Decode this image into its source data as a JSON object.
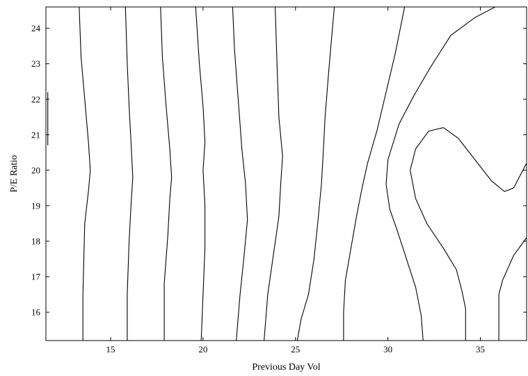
{
  "chart_data": {
    "type": "contour",
    "title": "",
    "xlabel": "Previous Day Vol",
    "ylabel": "P/E Ratio",
    "xlim": [
      11.5,
      37.5
    ],
    "ylim": [
      15.2,
      24.6
    ],
    "xticks": [
      15,
      20,
      25,
      30,
      35
    ],
    "yticks": [
      16,
      17,
      18,
      19,
      20,
      21,
      22,
      23,
      24
    ],
    "grid": false,
    "legend": "none",
    "line_color": "#000000",
    "contours": [
      {
        "points": [
          [
            11.6,
            22.2
          ],
          [
            11.6,
            20.7
          ]
        ]
      },
      {
        "points": [
          [
            13.5,
            15.2
          ],
          [
            13.5,
            16.5
          ],
          [
            13.6,
            18.5
          ],
          [
            13.8,
            19.4
          ],
          [
            13.9,
            20.0
          ],
          [
            13.8,
            20.8
          ],
          [
            13.6,
            22.0
          ],
          [
            13.4,
            23.2
          ],
          [
            13.3,
            24.6
          ]
        ]
      },
      {
        "points": [
          [
            15.9,
            15.2
          ],
          [
            15.9,
            16.5
          ],
          [
            16.0,
            18.0
          ],
          [
            16.1,
            19.0
          ],
          [
            16.2,
            19.8
          ],
          [
            16.1,
            20.8
          ],
          [
            16.0,
            21.8
          ],
          [
            15.9,
            23.0
          ],
          [
            15.8,
            24.6
          ]
        ]
      },
      {
        "points": [
          [
            17.9,
            15.2
          ],
          [
            17.9,
            16.8
          ],
          [
            18.1,
            18.2
          ],
          [
            18.2,
            19.2
          ],
          [
            18.3,
            19.8
          ],
          [
            18.2,
            20.6
          ],
          [
            18.0,
            21.8
          ],
          [
            17.8,
            23.2
          ],
          [
            17.7,
            24.6
          ]
        ]
      },
      {
        "points": [
          [
            19.9,
            15.2
          ],
          [
            20.0,
            16.5
          ],
          [
            20.1,
            17.8
          ],
          [
            20.1,
            19.0
          ],
          [
            20.0,
            20.0
          ],
          [
            20.1,
            20.8
          ],
          [
            20.0,
            21.8
          ],
          [
            19.8,
            23.0
          ],
          [
            19.6,
            24.6
          ]
        ]
      },
      {
        "points": [
          [
            21.8,
            15.2
          ],
          [
            22.0,
            16.5
          ],
          [
            22.2,
            17.5
          ],
          [
            22.4,
            18.6
          ],
          [
            22.3,
            19.6
          ],
          [
            22.1,
            20.6
          ],
          [
            21.9,
            22.0
          ],
          [
            21.7,
            23.4
          ],
          [
            21.6,
            24.6
          ]
        ]
      },
      {
        "points": [
          [
            23.3,
            15.2
          ],
          [
            23.5,
            16.5
          ],
          [
            23.8,
            17.6
          ],
          [
            24.1,
            18.7
          ],
          [
            24.2,
            19.6
          ],
          [
            24.3,
            20.4
          ],
          [
            24.1,
            21.5
          ],
          [
            24.0,
            23.0
          ],
          [
            23.9,
            24.6
          ]
        ]
      },
      {
        "points": [
          [
            25.1,
            15.2
          ],
          [
            25.3,
            15.8
          ],
          [
            25.7,
            16.5
          ],
          [
            26.0,
            17.5
          ],
          [
            26.2,
            18.5
          ],
          [
            26.4,
            19.6
          ],
          [
            26.5,
            20.5
          ],
          [
            26.6,
            21.5
          ],
          [
            26.8,
            22.8
          ],
          [
            27.0,
            24.0
          ],
          [
            27.1,
            24.6
          ]
        ]
      },
      {
        "points": [
          [
            27.6,
            15.2
          ],
          [
            27.6,
            16.0
          ],
          [
            27.7,
            16.9
          ],
          [
            28.0,
            17.8
          ],
          [
            28.3,
            18.7
          ],
          [
            28.6,
            19.5
          ],
          [
            28.9,
            20.2
          ],
          [
            29.4,
            21.1
          ],
          [
            29.9,
            22.2
          ],
          [
            30.4,
            23.3
          ],
          [
            30.9,
            24.6
          ]
        ]
      },
      {
        "points": [
          [
            31.9,
            15.2
          ],
          [
            31.8,
            15.9
          ],
          [
            31.5,
            16.7
          ],
          [
            31.0,
            17.5
          ],
          [
            30.5,
            18.3
          ],
          [
            30.1,
            18.9
          ],
          [
            29.9,
            19.6
          ],
          [
            30.0,
            20.3
          ],
          [
            30.6,
            21.3
          ],
          [
            31.4,
            22.1
          ],
          [
            32.3,
            22.9
          ],
          [
            33.4,
            23.8
          ],
          [
            34.7,
            24.3
          ],
          [
            35.8,
            24.6
          ]
        ]
      },
      {
        "points": [
          [
            34.2,
            15.2
          ],
          [
            34.2,
            16.1
          ],
          [
            34.0,
            16.6
          ],
          [
            33.7,
            17.2
          ],
          [
            33.0,
            17.8
          ],
          [
            32.1,
            18.5
          ],
          [
            31.5,
            19.2
          ],
          [
            31.2,
            20.0
          ],
          [
            31.5,
            20.6
          ],
          [
            32.2,
            21.1
          ],
          [
            33.0,
            21.2
          ],
          [
            33.8,
            20.9
          ],
          [
            34.7,
            20.3
          ],
          [
            35.6,
            19.7
          ],
          [
            36.3,
            19.4
          ],
          [
            36.8,
            19.5
          ],
          [
            37.5,
            20.2
          ]
        ]
      },
      {
        "points": [
          [
            36.0,
            15.2
          ],
          [
            36.0,
            16.5
          ],
          [
            36.2,
            16.9
          ],
          [
            36.8,
            17.6
          ],
          [
            37.5,
            18.1
          ]
        ]
      }
    ]
  }
}
